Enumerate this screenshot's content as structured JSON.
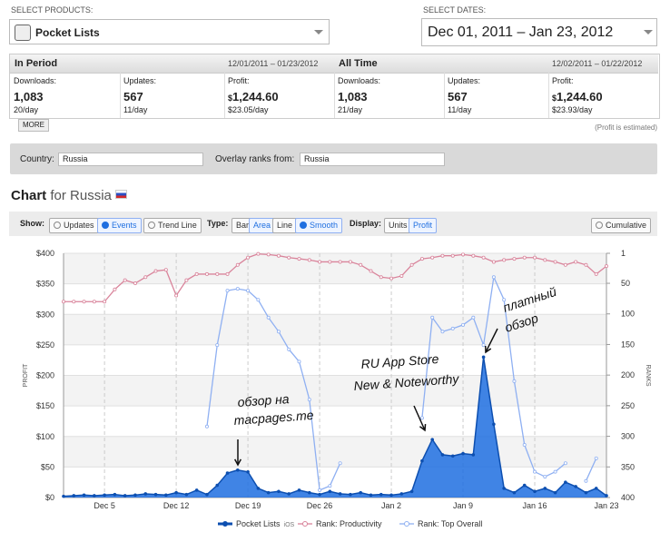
{
  "header": {
    "products_label": "SELECT PRODUCTS:",
    "product": "Pocket Lists",
    "dates_label": "SELECT DATES:",
    "date_range": "Dec 01, 2011 – Jan 23, 2012"
  },
  "stats": [
    {
      "title": "In Period",
      "range": "12/01/2011 – 01/23/2012",
      "cells": [
        {
          "label": "Downloads:",
          "value": "1,083",
          "rate": "20/day"
        },
        {
          "label": "Updates:",
          "value": "567",
          "rate": "11/day"
        },
        {
          "label": "Profit:",
          "currency": "$",
          "value": "1,244.60",
          "rate": "$23.05/day"
        }
      ]
    },
    {
      "title": "All Time",
      "range": "12/02/2011 – 01/22/2012",
      "cells": [
        {
          "label": "Downloads:",
          "value": "1,083",
          "rate": "21/day"
        },
        {
          "label": "Updates:",
          "value": "567",
          "rate": "11/day"
        },
        {
          "label": "Profit:",
          "currency": "$",
          "value": "1,244.60",
          "rate": "$23.93/day"
        }
      ]
    }
  ],
  "more_button": "MORE",
  "profit_note": "(Profit is estimated)",
  "filters": {
    "country_label": "Country:",
    "country": "Russia",
    "overlay_label": "Overlay ranks from:",
    "overlay": "Russia"
  },
  "chart_heading": {
    "title": "Chart",
    "subtitle": "for Russia"
  },
  "toolbar": {
    "show_label": "Show:",
    "show": [
      {
        "label": "Updates",
        "active": false
      },
      {
        "label": "Events",
        "active": true
      },
      {
        "label": "Trend Line",
        "active": false
      }
    ],
    "type_label": "Type:",
    "type": [
      {
        "label": "Bar",
        "active": false
      },
      {
        "label": "Area",
        "active": true
      },
      {
        "label": "Line",
        "active": false
      }
    ],
    "smooth": {
      "label": "Smooth",
      "active": true
    },
    "display_label": "Display:",
    "display": [
      {
        "label": "Units",
        "active": false
      },
      {
        "label": "Profit",
        "active": true
      }
    ],
    "cumulative": {
      "label": "Cumulative",
      "active": false
    }
  },
  "chart_data": {
    "type": "line",
    "ylabel": "PROFIT",
    "y2label": "RANKS",
    "grid": true,
    "legend": "bottom",
    "categories": [
      null,
      null,
      null,
      null,
      "Dec 5",
      null,
      null,
      null,
      null,
      null,
      null,
      "Dec 12",
      null,
      null,
      null,
      null,
      null,
      null,
      "Dec 19",
      null,
      null,
      null,
      null,
      null,
      null,
      "Dec 26",
      null,
      null,
      null,
      null,
      null,
      null,
      "Jan 2",
      null,
      null,
      null,
      null,
      null,
      null,
      "Jan 9",
      null,
      null,
      null,
      null,
      null,
      null,
      "Jan 16",
      null,
      null,
      null,
      null,
      null,
      null,
      "Jan 23"
    ],
    "ylim": [
      0,
      400
    ],
    "yticks": [
      {
        "value": 0,
        "label": "$0"
      },
      {
        "value": 50,
        "label": "$50"
      },
      {
        "value": 100,
        "label": "$100"
      },
      {
        "value": 150,
        "label": "$150"
      },
      {
        "value": 200,
        "label": "$200"
      },
      {
        "value": 250,
        "label": "$250"
      },
      {
        "value": 300,
        "label": "$300"
      },
      {
        "value": 350,
        "label": "$350"
      },
      {
        "value": 400,
        "label": "$400"
      }
    ],
    "y2lim": [
      400,
      1
    ],
    "y2ticks": [
      1,
      50,
      100,
      150,
      200,
      250,
      300,
      350,
      400
    ],
    "series": [
      {
        "name": "Pocket Lists",
        "platform": "iOS",
        "type": "area",
        "color": "#1f6fe0",
        "values": [
          2,
          3,
          4,
          3,
          4,
          5,
          3,
          4,
          6,
          5,
          4,
          8,
          5,
          12,
          5,
          20,
          40,
          45,
          42,
          15,
          8,
          10,
          6,
          12,
          8,
          5,
          10,
          6,
          5,
          8,
          4,
          5,
          4,
          6,
          10,
          60,
          95,
          70,
          68,
          72,
          70,
          230,
          120,
          15,
          8,
          20,
          10,
          15,
          8,
          25,
          18,
          8,
          15,
          3
        ]
      },
      {
        "name": "Rank: Productivity",
        "type": "line",
        "axis": "y2",
        "color": "#d9849b",
        "values": [
          80,
          80,
          80,
          80,
          80,
          60,
          45,
          50,
          40,
          30,
          28,
          70,
          45,
          35,
          35,
          35,
          35,
          20,
          8,
          2,
          3,
          5,
          8,
          10,
          12,
          15,
          15,
          15,
          15,
          20,
          30,
          40,
          42,
          38,
          20,
          10,
          8,
          5,
          5,
          3,
          5,
          8,
          15,
          12,
          10,
          8,
          8,
          12,
          15,
          20,
          15,
          20,
          35,
          22
        ]
      },
      {
        "name": "Rank: Top Overall",
        "type": "line",
        "axis": "y2",
        "color": "#8fb0f2",
        "values": [
          null,
          null,
          null,
          null,
          null,
          null,
          null,
          null,
          null,
          null,
          null,
          null,
          null,
          null,
          284,
          151,
          62,
          59,
          62,
          77,
          106,
          129,
          158,
          178,
          240,
          388,
          381,
          344,
          null,
          null,
          null,
          null,
          null,
          null,
          null,
          270,
          106,
          129,
          124,
          118,
          106,
          151,
          40,
          77,
          210,
          314,
          358,
          366,
          358,
          344,
          null,
          373,
          336,
          null
        ]
      }
    ],
    "annotations": [
      {
        "lines": [
          "обзор на",
          "macpages.me"
        ]
      },
      {
        "lines": [
          "RU App Store",
          "New & Noteworthy"
        ]
      },
      {
        "lines": [
          "платный",
          "обзор"
        ]
      }
    ]
  }
}
